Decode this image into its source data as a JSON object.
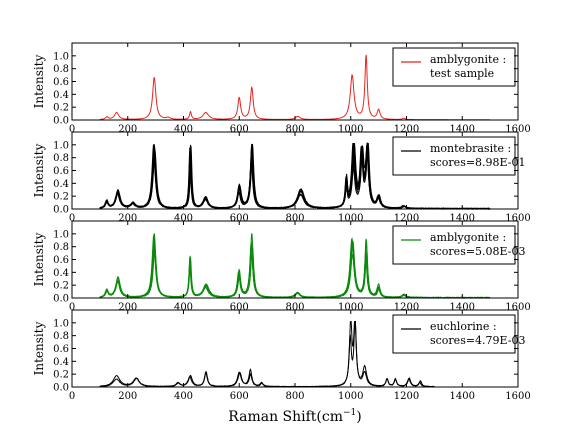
{
  "chart_data": [
    {
      "type": "line",
      "ylabel": "Intensity",
      "xlim": [
        0,
        1600
      ],
      "ylim": [
        0,
        1.2
      ],
      "xticks": [
        0,
        200,
        400,
        600,
        800,
        1000,
        1200,
        1400,
        1600
      ],
      "yticks": [
        0.0,
        0.2,
        0.4,
        0.6,
        0.8,
        1.0
      ],
      "legend_position": "top-right",
      "series": [
        {
          "name": "amblygonite :",
          "name2": "test sample",
          "color": "#e8241f",
          "range": [
            100,
            1500
          ],
          "peaks": [
            [
              125,
              0.04,
              6
            ],
            [
              160,
              0.11,
              9
            ],
            [
              295,
              0.66,
              7
            ],
            [
              345,
              0.03,
              8
            ],
            [
              425,
              0.12,
              4
            ],
            [
              480,
              0.11,
              12
            ],
            [
              600,
              0.34,
              6
            ],
            [
              645,
              0.5,
              6
            ],
            [
              810,
              0.05,
              10
            ],
            [
              1005,
              0.69,
              8
            ],
            [
              1055,
              1.0,
              5
            ],
            [
              1100,
              0.15,
              6
            ],
            [
              1190,
              0.02,
              6
            ]
          ]
        }
      ]
    },
    {
      "type": "line",
      "ylabel": "Intensity",
      "xlim": [
        0,
        1600
      ],
      "ylim": [
        0,
        1.2
      ],
      "xticks": [
        0,
        200,
        400,
        600,
        800,
        1000,
        1200,
        1400,
        1600
      ],
      "yticks": [
        0.0,
        0.2,
        0.4,
        0.6,
        0.8,
        1.0
      ],
      "legend_position": "top-right",
      "series": [
        {
          "name": "montebrasite :",
          "name2": "scores=8.98E-01",
          "color": "#000000",
          "range": [
            100,
            1500
          ],
          "variants": 7,
          "peaks": [
            [
              125,
              0.12,
              6
            ],
            [
              165,
              0.28,
              9
            ],
            [
              220,
              0.08,
              10
            ],
            [
              295,
              1.0,
              7
            ],
            [
              425,
              1.0,
              4
            ],
            [
              480,
              0.18,
              10
            ],
            [
              600,
              0.35,
              7
            ],
            [
              645,
              1.0,
              6
            ],
            [
              820,
              0.3,
              14
            ],
            [
              985,
              0.45,
              4
            ],
            [
              1010,
              1.0,
              7
            ],
            [
              1040,
              0.85,
              6
            ],
            [
              1060,
              0.95,
              6
            ],
            [
              1100,
              0.18,
              7
            ],
            [
              1190,
              0.04,
              8
            ]
          ]
        }
      ]
    },
    {
      "type": "line",
      "ylabel": "Intensity",
      "xlim": [
        0,
        1600
      ],
      "ylim": [
        0,
        1.2
      ],
      "xticks": [
        0,
        200,
        400,
        600,
        800,
        1000,
        1200,
        1400,
        1600
      ],
      "yticks": [
        0.0,
        0.2,
        0.4,
        0.6,
        0.8,
        1.0
      ],
      "legend_position": "top-right",
      "series": [
        {
          "name": "amblygonite :",
          "name2": "scores=5.08E-03",
          "color": "#0a8a0a",
          "range": [
            100,
            1500
          ],
          "variants": 5,
          "peaks": [
            [
              125,
              0.12,
              6
            ],
            [
              165,
              0.32,
              9
            ],
            [
              295,
              1.0,
              7
            ],
            [
              425,
              0.62,
              4
            ],
            [
              480,
              0.2,
              12
            ],
            [
              600,
              0.42,
              6
            ],
            [
              645,
              1.0,
              6
            ],
            [
              810,
              0.08,
              10
            ],
            [
              1005,
              0.88,
              8
            ],
            [
              1055,
              0.9,
              5
            ],
            [
              1100,
              0.2,
              6
            ],
            [
              1190,
              0.05,
              8
            ]
          ]
        }
      ]
    },
    {
      "type": "line",
      "ylabel": "Intensity",
      "xlim": [
        0,
        1600
      ],
      "ylim": [
        0,
        1.2
      ],
      "xticks": [
        0,
        200,
        400,
        600,
        800,
        1000,
        1200,
        1400,
        1600
      ],
      "yticks": [
        0.0,
        0.2,
        0.4,
        0.6,
        0.8,
        1.0
      ],
      "xlabel": "Raman Shift(cm",
      "xlabel_sup": "−1",
      "xlabel_end": ")",
      "legend_position": "top-right",
      "series": [
        {
          "name": "euchlorine :",
          "name2": "scores=4.79E-03",
          "color": "#000000",
          "range": [
            100,
            1300
          ],
          "variants": 2,
          "peaks": [
            [
              160,
              0.17,
              14
            ],
            [
              230,
              0.13,
              12
            ],
            [
              380,
              0.06,
              8
            ],
            [
              425,
              0.17,
              8
            ],
            [
              480,
              0.22,
              6
            ],
            [
              600,
              0.22,
              8
            ],
            [
              640,
              0.26,
              6
            ],
            [
              680,
              0.06,
              6
            ],
            [
              1000,
              1.0,
              5
            ],
            [
              1015,
              1.0,
              5
            ],
            [
              1050,
              0.3,
              8
            ],
            [
              1130,
              0.12,
              5
            ],
            [
              1160,
              0.12,
              5
            ],
            [
              1210,
              0.13,
              6
            ],
            [
              1250,
              0.09,
              5
            ]
          ]
        }
      ]
    }
  ]
}
